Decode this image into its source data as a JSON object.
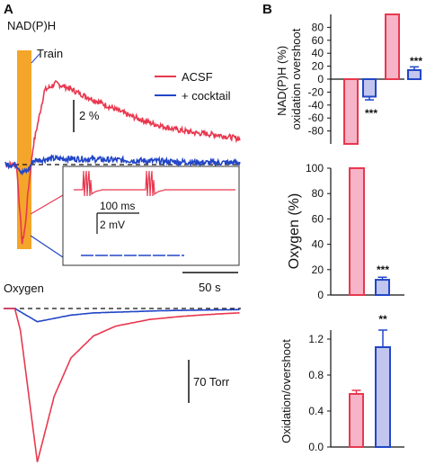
{
  "panel_a": {
    "letter": "A",
    "nadph_title": "NAD(P)H",
    "oxygen_title": "Oxygen",
    "train_label": "Train",
    "scale_nadph": "2 %",
    "scale_time": "50 s",
    "scale_oxygen": "70 Torr",
    "inset_time": "100 ms",
    "inset_volt": "2 mV"
  },
  "panel_b": {
    "letter": "B"
  },
  "colors": {
    "acsf": "#e8384f",
    "cocktail": "#2246c8",
    "acsf_fill": "#f7b3c8",
    "cocktail_fill": "#c2c6ee",
    "train": "#f4a62a"
  },
  "chart_data": [
    {
      "type": "line",
      "title": "NAD(P)H",
      "legend_placement": "top-right",
      "series": [
        {
          "name": "ACSF",
          "color": "#e8384f",
          "x": [
            0,
            10,
            15,
            18,
            20,
            25,
            35,
            45,
            55,
            70,
            90,
            110,
            130,
            150,
            170,
            190,
            210
          ],
          "y": [
            0,
            0,
            -8,
            -6,
            -3,
            2,
            7.5,
            8.2,
            7.8,
            7.0,
            6.0,
            5.0,
            4.2,
            3.6,
            3.2,
            3.0,
            2.6
          ]
        },
        {
          "name": "+ cocktail",
          "color": "#2246c8",
          "x": [
            0,
            10,
            15,
            20,
            25,
            40,
            60,
            90,
            120,
            150,
            180,
            210
          ],
          "y": [
            0,
            0,
            -0.8,
            -0.6,
            0.4,
            0.6,
            0.6,
            0.5,
            0.4,
            0.3,
            0.2,
            0.2
          ]
        }
      ]
    },
    {
      "type": "line",
      "title": "Oxygen",
      "series": [
        {
          "name": "ACSF",
          "color": "#e8384f",
          "x": [
            0,
            10,
            15,
            20,
            25,
            30,
            35,
            45,
            60,
            80,
            100,
            130,
            160,
            190,
            210
          ],
          "y": [
            0,
            0,
            -20,
            -60,
            -100,
            -140,
            -120,
            -80,
            -45,
            -25,
            -16,
            -10,
            -7,
            -5,
            -4
          ]
        },
        {
          "name": "+ cocktail",
          "color": "#2246c8",
          "x": [
            0,
            10,
            20,
            30,
            45,
            60,
            80,
            110,
            140,
            170,
            210
          ],
          "y": [
            0,
            0,
            -6,
            -12,
            -9,
            -6,
            -4,
            -3,
            -2,
            -1.5,
            -1
          ]
        }
      ]
    },
    {
      "type": "bar",
      "ylabel": "NAD(P)H (%) oxidation overshoot",
      "ylim": [
        -100,
        100
      ],
      "yticks": [
        80,
        60,
        40,
        20,
        0,
        -20,
        -40,
        -60,
        -80
      ],
      "groups": [
        {
          "condition": "ACSF",
          "values": [
            -100,
            100
          ],
          "errors": [
            0,
            0
          ]
        },
        {
          "condition": "cocktail",
          "values": [
            -27,
            14
          ],
          "errors": [
            5,
            5
          ]
        }
      ],
      "significance": [
        "***",
        "***"
      ]
    },
    {
      "type": "bar",
      "ylabel": "Oxygen (%)",
      "ylim": [
        0,
        100
      ],
      "yticks": [
        100,
        80,
        60,
        40,
        20,
        0
      ],
      "values": [
        100,
        12
      ],
      "errors": [
        0,
        2
      ],
      "significance": "***"
    },
    {
      "type": "bar",
      "ylabel": "Oxidation/overshoot",
      "ylim": [
        0,
        1.4
      ],
      "yticks": [
        1.2,
        0.8,
        0.4,
        0
      ],
      "values": [
        0.59,
        1.11
      ],
      "errors": [
        0.04,
        0.19
      ],
      "significance": "**"
    }
  ]
}
